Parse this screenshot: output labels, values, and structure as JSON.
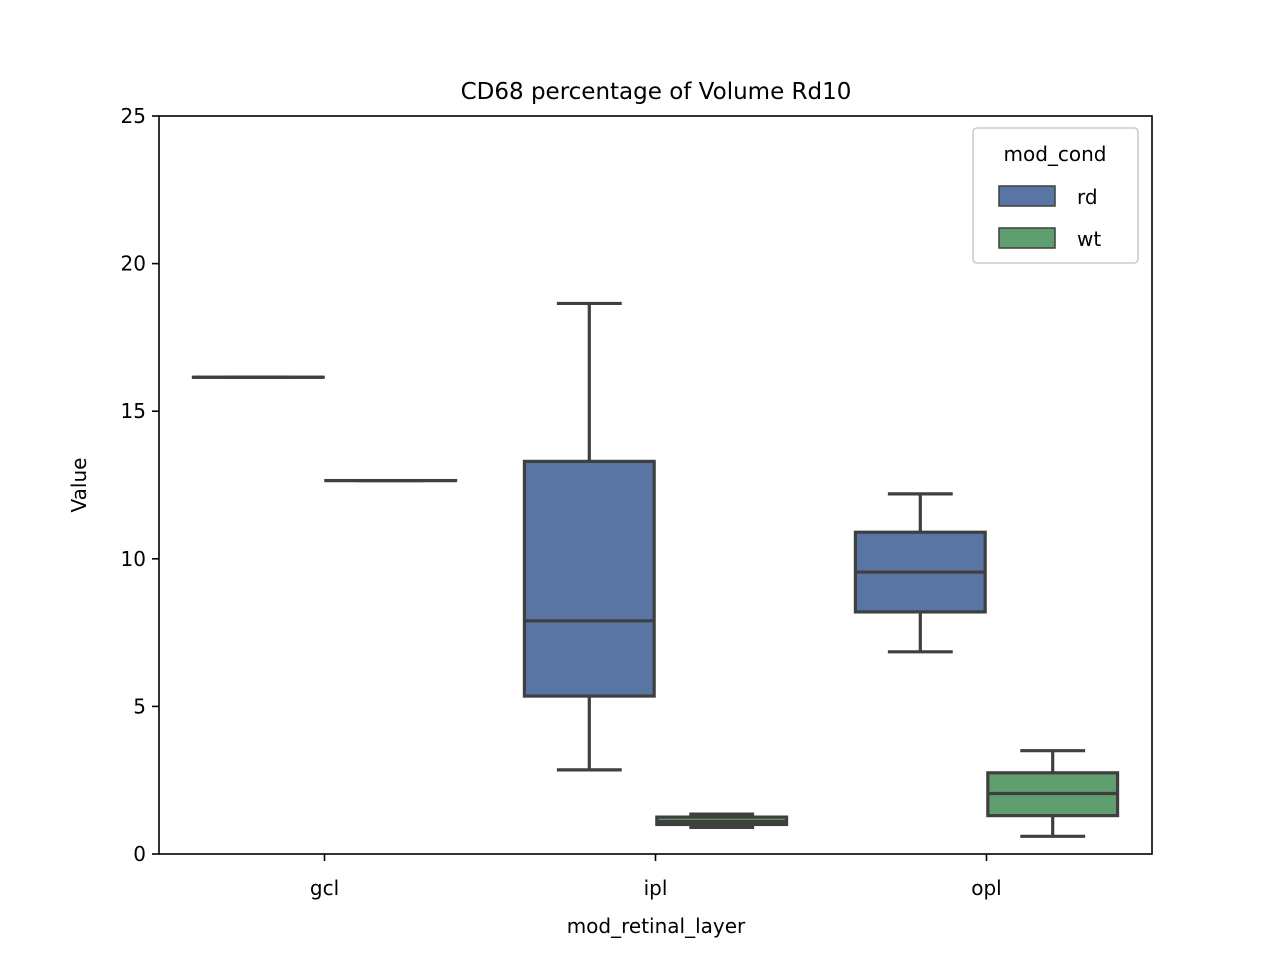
{
  "chart_data": {
    "type": "box",
    "title": "CD68 percentage of Volume Rd10",
    "xlabel": "mod_retinal_layer",
    "ylabel": "Value",
    "categories": [
      "gcl",
      "ipl",
      "opl"
    ],
    "ylim": [
      0,
      25
    ],
    "yticks": [
      "0",
      "5",
      "10",
      "15",
      "20",
      "25"
    ],
    "legend": {
      "title": "mod_cond",
      "position": "top-right"
    },
    "series": [
      {
        "name": "rd",
        "color": "#5875a4",
        "boxes": [
          {
            "category": "gcl",
            "min": 16.15,
            "q1": 16.15,
            "median": 16.15,
            "q3": 16.15,
            "max": 16.15
          },
          {
            "category": "ipl",
            "min": 2.85,
            "q1": 5.35,
            "median": 7.9,
            "q3": 13.3,
            "max": 18.65
          },
          {
            "category": "opl",
            "min": 6.85,
            "q1": 8.2,
            "median": 9.55,
            "q3": 10.9,
            "max": 12.2
          }
        ]
      },
      {
        "name": "wt",
        "color": "#5f9e6e",
        "boxes": [
          {
            "category": "gcl",
            "min": 12.65,
            "q1": 12.65,
            "median": 12.65,
            "q3": 12.65,
            "max": 12.65
          },
          {
            "category": "ipl",
            "min": 0.9,
            "q1": 1.0,
            "median": 1.1,
            "q3": 1.25,
            "max": 1.35
          },
          {
            "category": "opl",
            "min": 0.6,
            "q1": 1.3,
            "median": 2.05,
            "q3": 2.75,
            "max": 3.5
          }
        ]
      }
    ]
  }
}
